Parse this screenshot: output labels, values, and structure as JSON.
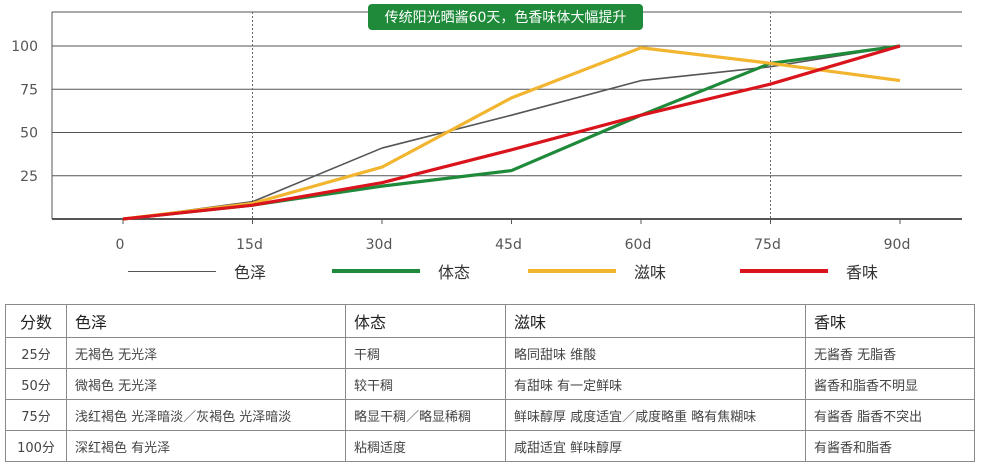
{
  "chart_data": {
    "type": "line",
    "banner": "传统阳光晒酱60天，色香味体大幅提升",
    "x": [
      "0",
      "15d",
      "30d",
      "45d",
      "60d",
      "75d",
      "90d"
    ],
    "y_ticks": [
      "25",
      "50",
      "75",
      "100"
    ],
    "ylim": [
      0,
      100
    ],
    "dashed_x": [
      "15d",
      "75d"
    ],
    "series": [
      {
        "name": "色泽",
        "color": "#555555",
        "values": [
          0,
          10,
          41,
          60,
          80,
          88,
          100
        ]
      },
      {
        "name": "体态",
        "color": "#1f8a3a",
        "values": [
          0,
          8,
          19,
          28,
          60,
          90,
          100
        ]
      },
      {
        "name": "滋味",
        "color": "#f2b52f",
        "values": [
          0,
          9,
          30,
          70,
          99,
          90,
          80
        ]
      },
      {
        "name": "香味",
        "color": "#d9141c",
        "values": [
          0,
          8,
          21,
          40,
          60,
          78,
          100
        ]
      }
    ]
  },
  "table": {
    "headers": [
      "分数",
      "色泽",
      "体态",
      "滋味",
      "香味"
    ],
    "rows": [
      [
        "25分",
        "无褐色  无光泽",
        "干稠",
        "略同甜味  维酸",
        "无酱香  无脂香"
      ],
      [
        "50分",
        "微褐色  无光泽",
        "较干稠",
        "有甜味  有一定鲜味",
        "酱香和脂香不明显"
      ],
      [
        "75分",
        "浅红褐色  光泽暗淡／灰褐色  光泽暗淡",
        "略显干稠／略显稀稠",
        "鲜味醇厚  咸度适宜／咸度略重  略有焦糊味",
        "有酱香  脂香不突出"
      ],
      [
        "100分",
        "深红褐色  有光泽",
        "粘稠适度",
        "咸甜适宜  鲜味醇厚",
        "有酱香和脂香"
      ]
    ]
  }
}
